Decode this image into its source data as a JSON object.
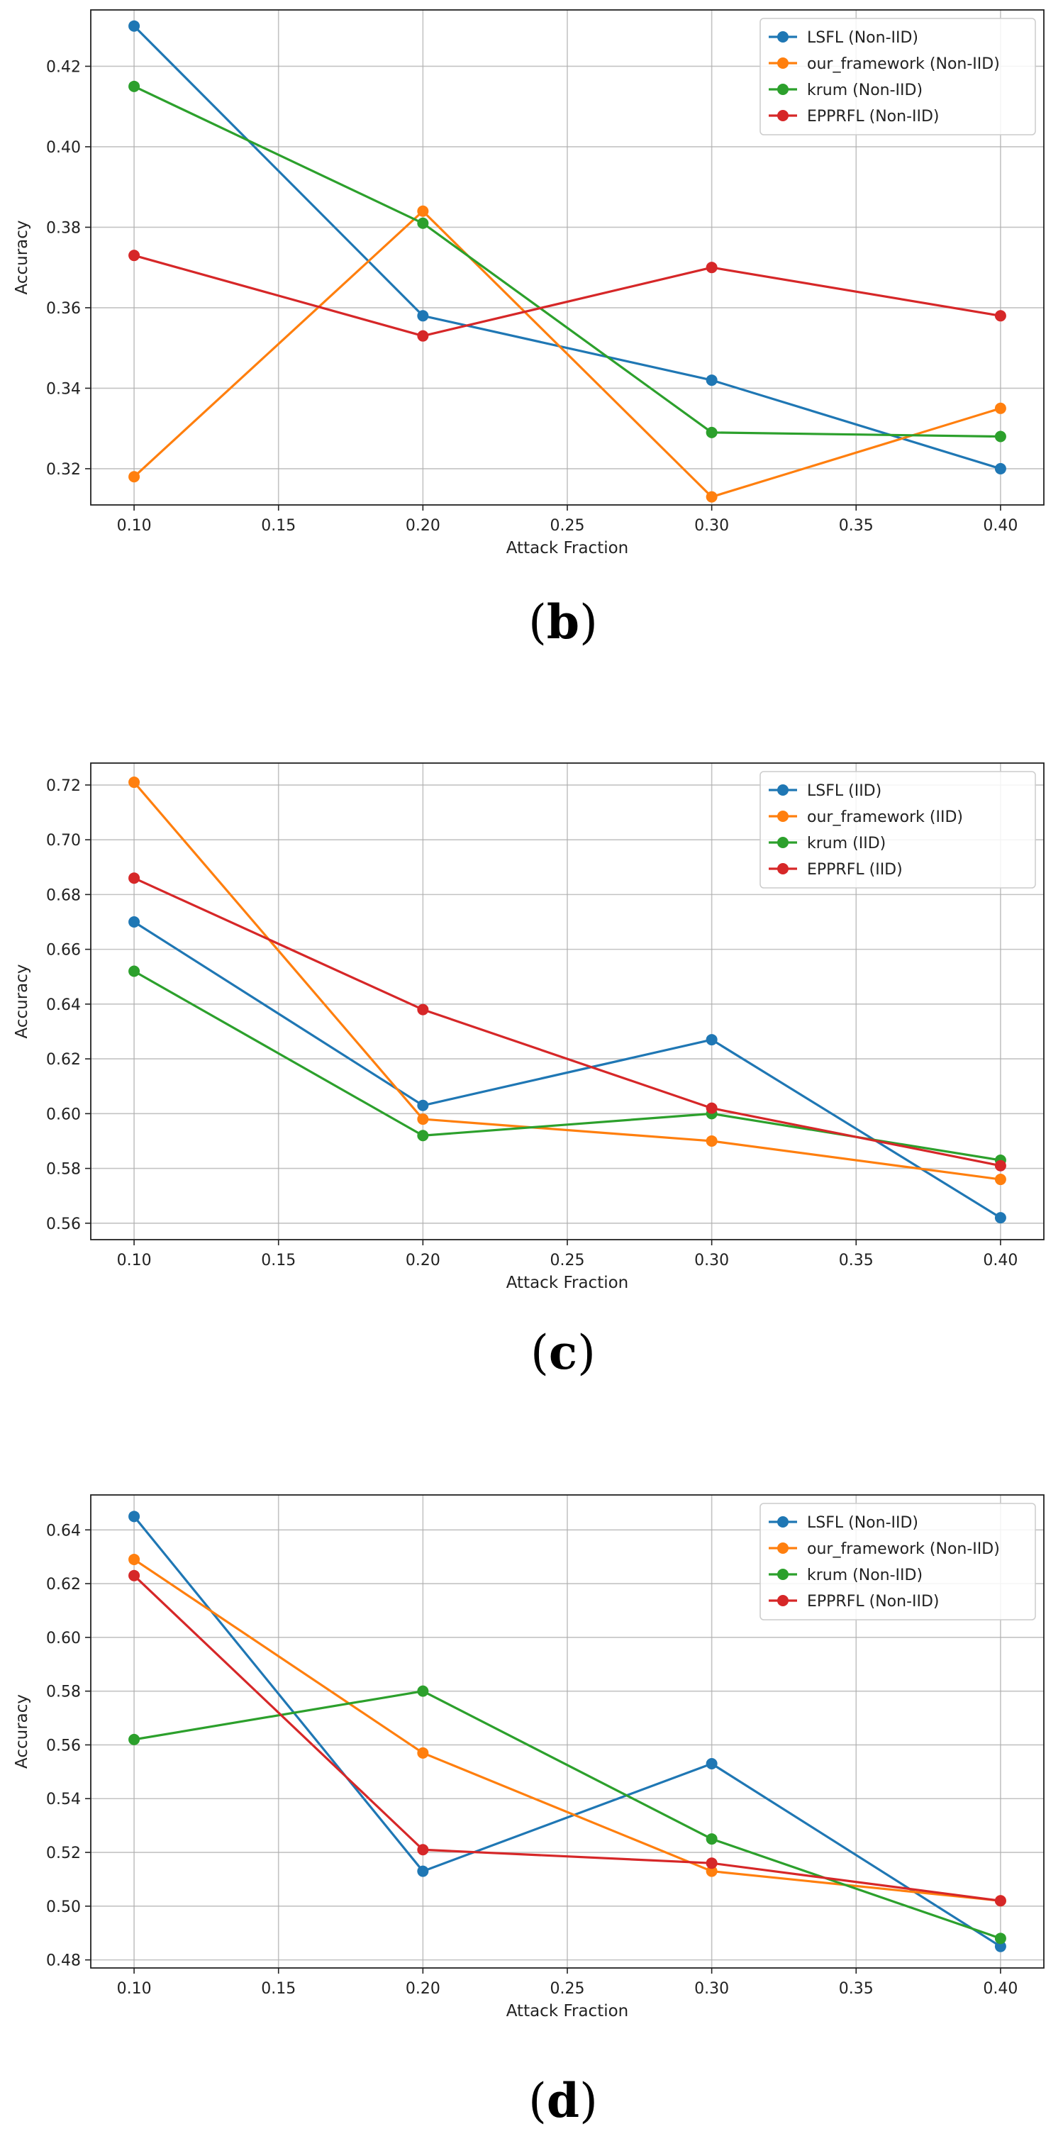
{
  "chart_data": [
    {
      "type": "line",
      "caption_open": "(",
      "caption_letter": "b",
      "caption_close": ")",
      "xlabel": "Attack Fraction",
      "ylabel": "Accuracy",
      "x": [
        0.1,
        0.2,
        0.3,
        0.4
      ],
      "xlim": [
        0.085,
        0.415
      ],
      "ylim": [
        0.311,
        0.434
      ],
      "xticks": [
        "0.10",
        "0.15",
        "0.20",
        "0.25",
        "0.30",
        "0.35",
        "0.40"
      ],
      "yticks": [
        "0.32",
        "0.34",
        "0.36",
        "0.38",
        "0.40",
        "0.42"
      ],
      "grid": true,
      "legend_position": "top-right",
      "series": [
        {
          "name": "LSFL (Non-IID)",
          "color": "#1f77b4",
          "values": [
            0.43,
            0.358,
            0.342,
            0.32
          ]
        },
        {
          "name": "our_framework (Non-IID)",
          "color": "#ff7f0e",
          "values": [
            0.318,
            0.384,
            0.313,
            0.335
          ]
        },
        {
          "name": "krum (Non-IID)",
          "color": "#2ca02c",
          "values": [
            0.415,
            0.381,
            0.329,
            0.328
          ]
        },
        {
          "name": "EPPRFL (Non-IID)",
          "color": "#d62728",
          "values": [
            0.373,
            0.353,
            0.37,
            0.358
          ]
        }
      ]
    },
    {
      "type": "line",
      "caption_open": "(",
      "caption_letter": "c",
      "caption_close": ")",
      "xlabel": "Attack Fraction",
      "ylabel": "Accuracy",
      "x": [
        0.1,
        0.2,
        0.3,
        0.4
      ],
      "xlim": [
        0.085,
        0.415
      ],
      "ylim": [
        0.554,
        0.728
      ],
      "xticks": [
        "0.10",
        "0.15",
        "0.20",
        "0.25",
        "0.30",
        "0.35",
        "0.40"
      ],
      "yticks": [
        "0.56",
        "0.58",
        "0.60",
        "0.62",
        "0.64",
        "0.66",
        "0.68",
        "0.70",
        "0.72"
      ],
      "grid": true,
      "legend_position": "top-right",
      "series": [
        {
          "name": "LSFL (IID)",
          "color": "#1f77b4",
          "values": [
            0.67,
            0.603,
            0.627,
            0.562
          ]
        },
        {
          "name": "our_framework (IID)",
          "color": "#ff7f0e",
          "values": [
            0.721,
            0.598,
            0.59,
            0.576
          ]
        },
        {
          "name": "krum (IID)",
          "color": "#2ca02c",
          "values": [
            0.652,
            0.592,
            0.6,
            0.583
          ]
        },
        {
          "name": "EPPRFL (IID)",
          "color": "#d62728",
          "values": [
            0.686,
            0.638,
            0.602,
            0.581
          ]
        }
      ]
    },
    {
      "type": "line",
      "caption_open": "(",
      "caption_letter": "d",
      "caption_close": ")",
      "xlabel": "Attack Fraction",
      "ylabel": "Accuracy",
      "x": [
        0.1,
        0.2,
        0.3,
        0.4
      ],
      "xlim": [
        0.085,
        0.415
      ],
      "ylim": [
        0.477,
        0.653
      ],
      "xticks": [
        "0.10",
        "0.15",
        "0.20",
        "0.25",
        "0.30",
        "0.35",
        "0.40"
      ],
      "yticks": [
        "0.48",
        "0.50",
        "0.52",
        "0.54",
        "0.56",
        "0.58",
        "0.60",
        "0.62",
        "0.64"
      ],
      "grid": true,
      "legend_position": "top-right",
      "series": [
        {
          "name": "LSFL (Non-IID)",
          "color": "#1f77b4",
          "values": [
            0.645,
            0.513,
            0.553,
            0.485
          ]
        },
        {
          "name": "our_framework (Non-IID)",
          "color": "#ff7f0e",
          "values": [
            0.629,
            0.557,
            0.513,
            0.502
          ]
        },
        {
          "name": "krum (Non-IID)",
          "color": "#2ca02c",
          "values": [
            0.562,
            0.58,
            0.525,
            0.488
          ]
        },
        {
          "name": "EPPRFL (Non-IID)",
          "color": "#d62728",
          "values": [
            0.623,
            0.521,
            0.516,
            0.502
          ]
        }
      ]
    }
  ]
}
